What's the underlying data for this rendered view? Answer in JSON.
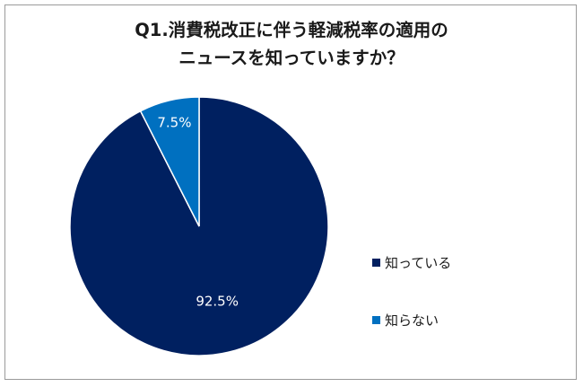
{
  "chart_data": {
    "type": "pie",
    "title_lines": [
      "Q1.消費税改正に伴う軽減税率の適用の",
      "ニュースを知っていますか？"
    ],
    "slices": [
      {
        "label": "知っている",
        "value": 92.5,
        "display": "92.5%",
        "color": "#002060"
      },
      {
        "label": "知らない",
        "value": 7.5,
        "display": "7.5%",
        "color": "#0070C0"
      }
    ],
    "legend_position": "right",
    "start_angle": "12 o'clock",
    "direction": "clockwise"
  }
}
